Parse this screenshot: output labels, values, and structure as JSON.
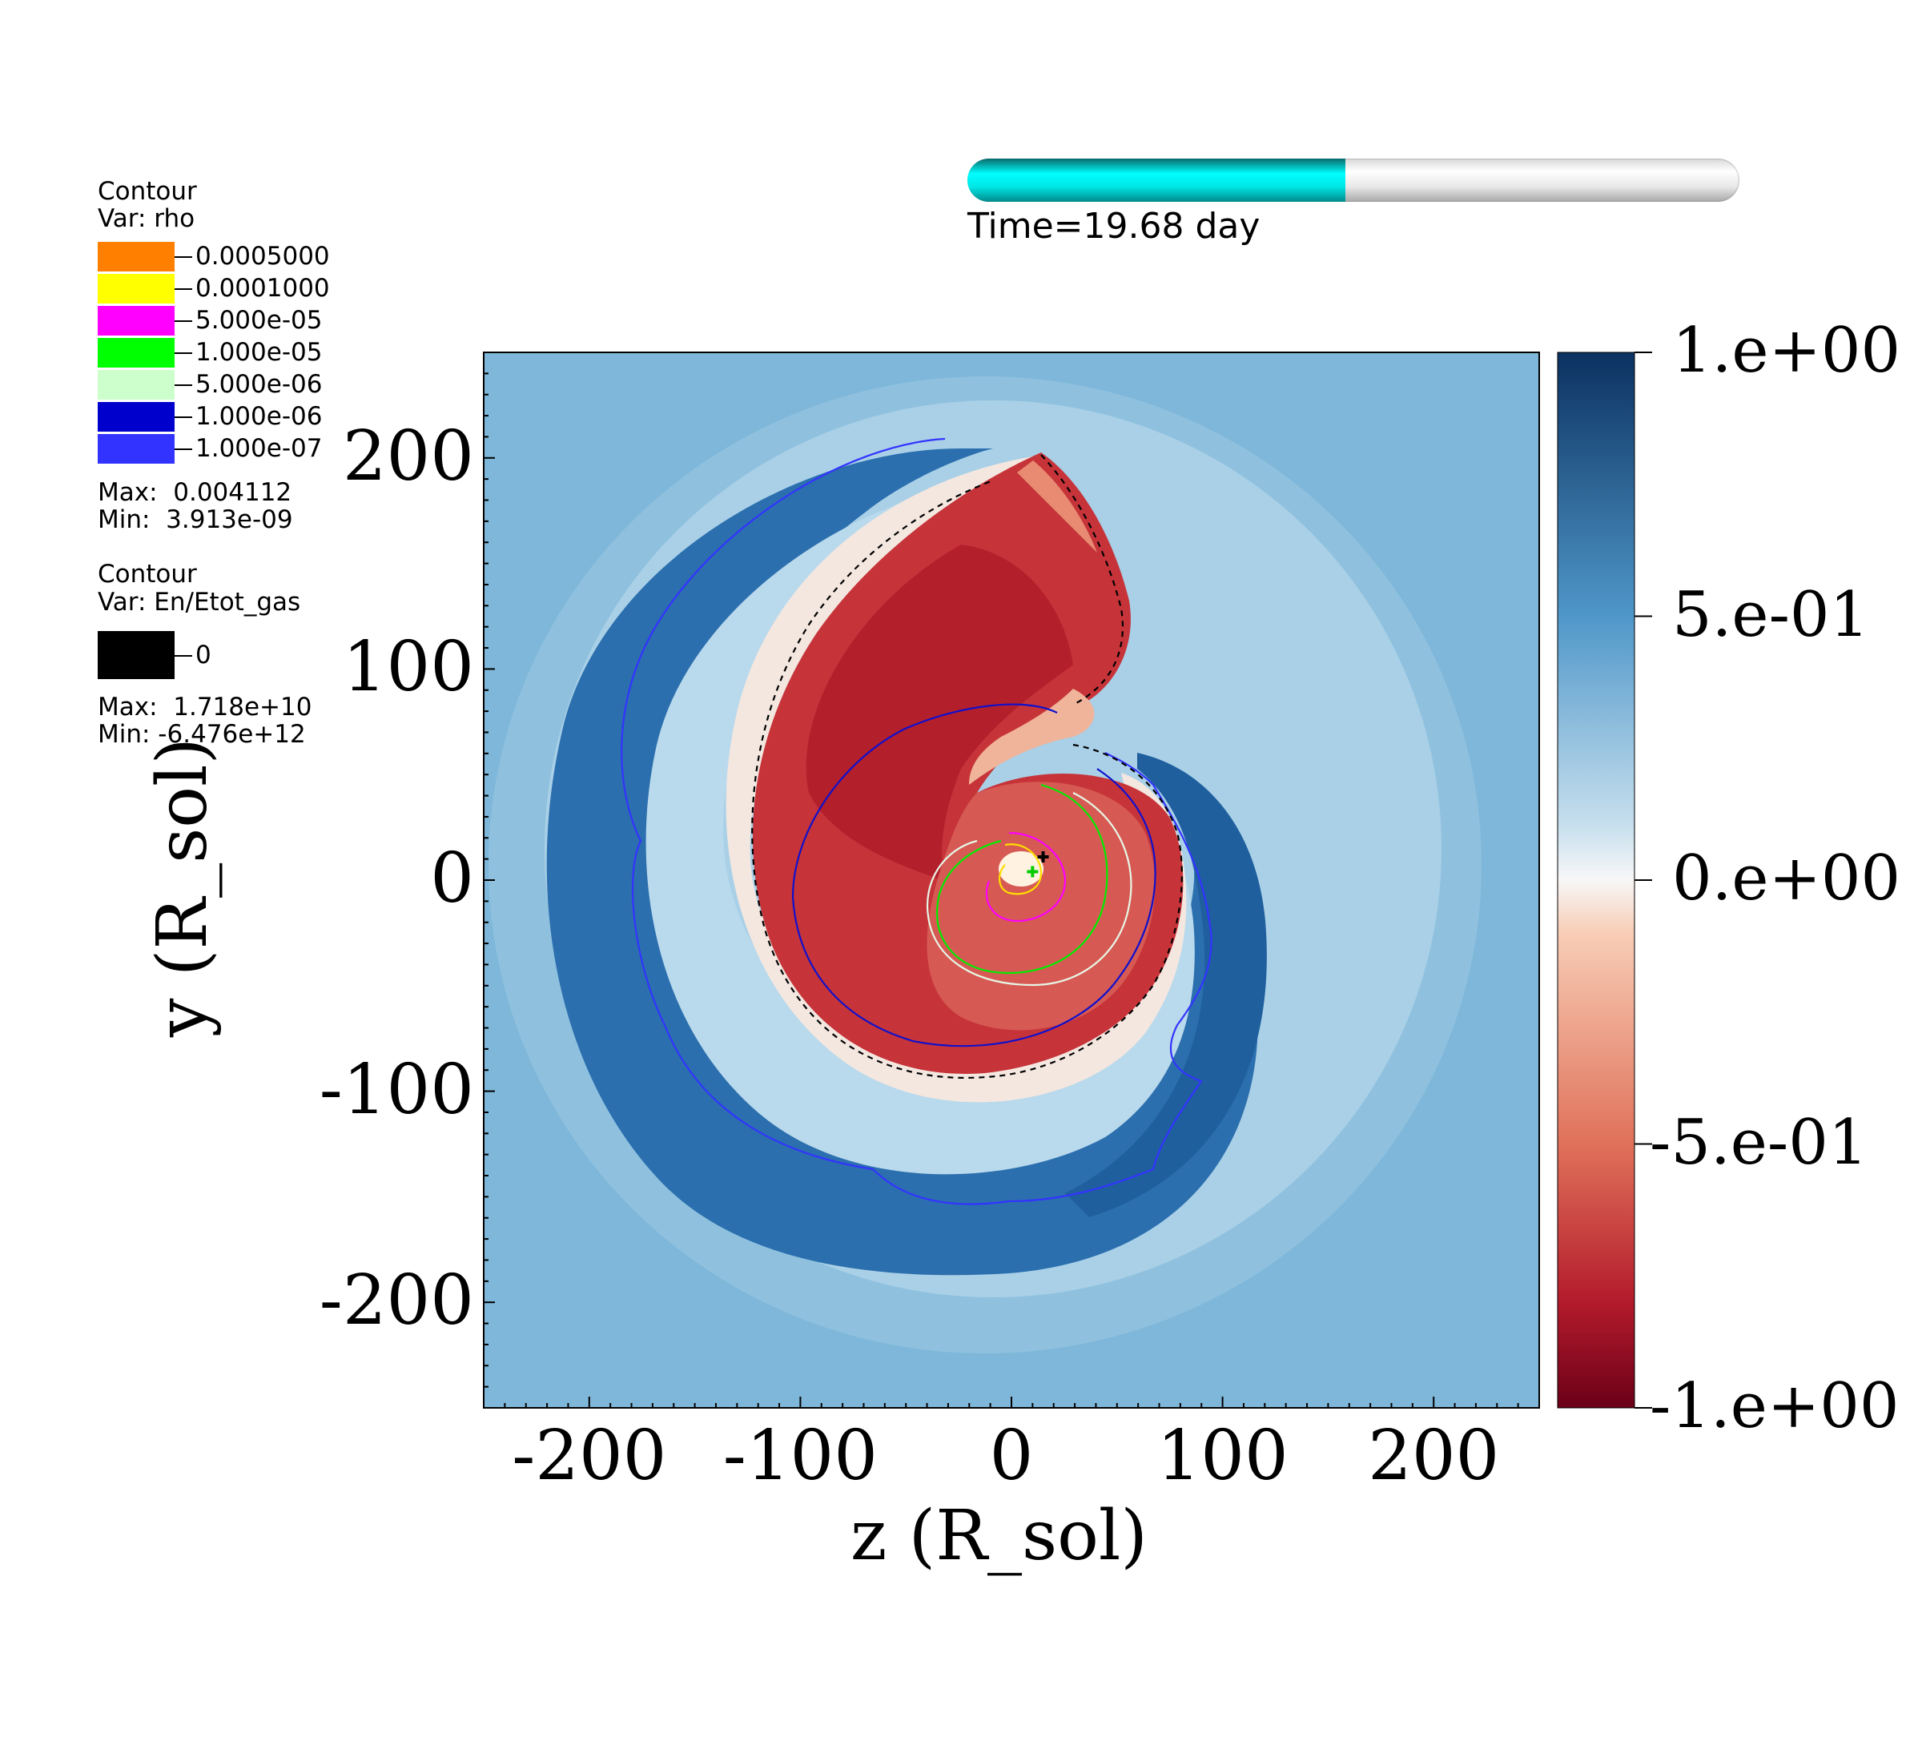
{
  "legend_rho": {
    "title": "Contour",
    "var": "Var: rho",
    "entries": [
      {
        "label": "0.0005000",
        "color": "#ff8000"
      },
      {
        "label": "0.0001000",
        "color": "#ffff00"
      },
      {
        "label": "5.000e-05",
        "color": "#ff00ff"
      },
      {
        "label": "1.000e-05",
        "color": "#00ff00"
      },
      {
        "label": "5.000e-06",
        "color": "#ccffcc"
      },
      {
        "label": "1.000e-06",
        "color": "#0000cc"
      },
      {
        "label": "1.000e-07",
        "color": "#3333ff"
      }
    ],
    "max": "Max:  0.004112",
    "min": "Min:  3.913e-09"
  },
  "legend_energy": {
    "title": "Contour",
    "var": "Var: En/Etot_gas",
    "entries": [
      {
        "label": "0",
        "color": "#000000"
      }
    ],
    "max": "Max:  1.718e+10",
    "min": "Min: -6.476e+12"
  },
  "time": {
    "label": "Time=19.68 day",
    "progress_fraction": 0.49
  },
  "chart_data": {
    "type": "heatmap",
    "xlabel": "z (R_sol)",
    "ylabel": "y (R_sol)",
    "xlim": [
      -250,
      250
    ],
    "ylim": [
      -250,
      250
    ],
    "x_ticks": [
      -200,
      -100,
      0,
      100,
      200
    ],
    "y_ticks": [
      -200,
      -100,
      0,
      100,
      200
    ],
    "x_tick_labels": [
      "-200",
      "-100",
      "0",
      "100",
      "200"
    ],
    "y_tick_labels": [
      "-200",
      "-100",
      "0",
      "100",
      "200"
    ],
    "colorbar": {
      "colormap": "diverging red-white-blue",
      "range": [
        -1,
        1
      ],
      "ticks": [
        1,
        0.5,
        0,
        -0.5,
        -1
      ],
      "tick_labels": [
        "1.e+00",
        "5.e-01",
        "0.e+00",
        "-5.e-01",
        "-1.e+00"
      ],
      "colors": [
        "#6b0018",
        "#b31b2b",
        "#e58368",
        "#f7f7f7",
        "#8ec3de",
        "#2f74b2",
        "#0b3160"
      ]
    },
    "markers": [
      {
        "type": "cross",
        "color": "#000000",
        "x": 15,
        "y": 11
      },
      {
        "type": "cross",
        "color": "#00cc00",
        "x": 10,
        "y": 4
      }
    ]
  }
}
